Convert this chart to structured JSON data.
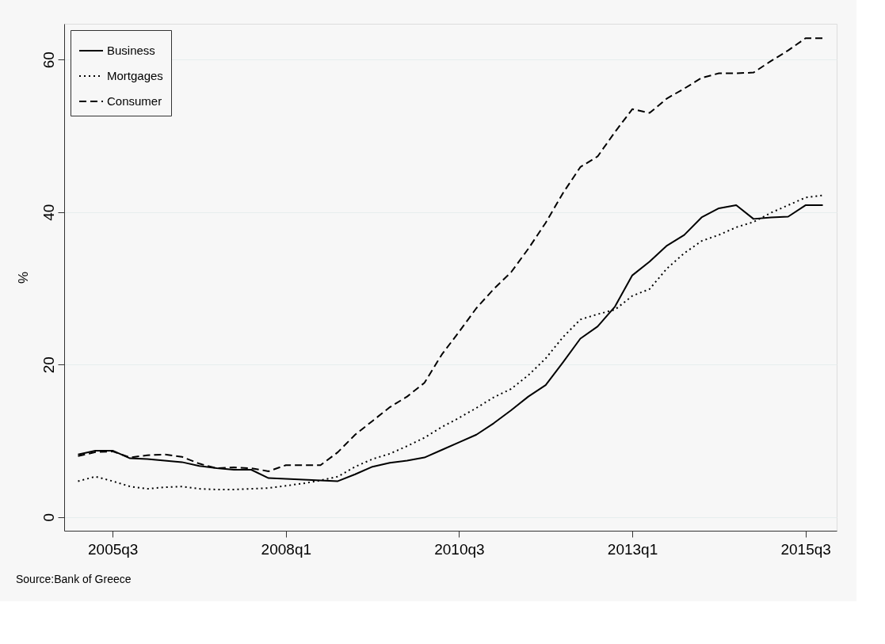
{
  "chart_data": {
    "type": "line",
    "ylabel": "%",
    "categories": [
      null,
      null,
      "2005q3",
      null,
      null,
      null,
      null,
      null,
      null,
      null,
      null,
      null,
      "2008q1",
      null,
      null,
      null,
      null,
      null,
      null,
      null,
      null,
      null,
      "2010q3",
      null,
      null,
      null,
      null,
      null,
      null,
      null,
      null,
      null,
      "2013q1",
      null,
      null,
      null,
      null,
      null,
      null,
      null,
      null,
      null,
      "2015q3",
      null
    ],
    "series": [
      {
        "name": "Business",
        "color": "#000000",
        "line_style": "solid",
        "values": [
          8.2,
          8.7,
          8.7,
          7.7,
          7.6,
          7.4,
          7.2,
          6.7,
          6.4,
          6.2,
          6.2,
          5.1,
          5.0,
          4.9,
          4.8,
          4.7,
          5.6,
          6.6,
          7.1,
          7.4,
          7.8,
          8.8,
          9.8,
          10.8,
          12.3,
          14.0,
          15.8,
          17.3,
          20.3,
          23.4,
          25.0,
          27.6,
          31.7,
          33.5,
          35.6,
          37.0,
          39.3,
          40.5,
          40.9,
          39.1,
          39.3,
          39.4,
          40.9,
          40.9
        ]
      },
      {
        "name": "Mortgages",
        "color": "#000000",
        "line_style": "dotted",
        "values": [
          4.7,
          5.3,
          4.7,
          4.0,
          3.7,
          3.9,
          4.0,
          3.7,
          3.6,
          3.6,
          3.7,
          3.8,
          4.1,
          4.4,
          4.8,
          5.3,
          6.6,
          7.6,
          8.3,
          9.3,
          10.4,
          11.8,
          13.0,
          14.3,
          15.7,
          16.8,
          18.6,
          20.8,
          23.6,
          25.9,
          26.6,
          27.2,
          29.0,
          29.9,
          32.6,
          34.6,
          36.2,
          37.0,
          38.0,
          38.7,
          39.9,
          40.9,
          41.9,
          42.2
        ]
      },
      {
        "name": "Consumer",
        "color": "#000000",
        "line_style": "dashed",
        "values": [
          8.0,
          8.5,
          8.6,
          7.8,
          8.1,
          8.2,
          7.9,
          7.0,
          6.4,
          6.5,
          6.4,
          6.0,
          6.8,
          6.8,
          6.8,
          8.5,
          10.8,
          12.6,
          14.4,
          15.8,
          17.6,
          21.3,
          24.3,
          27.4,
          29.9,
          32.1,
          35.2,
          38.6,
          42.5,
          45.9,
          47.3,
          50.5,
          53.5,
          53.0,
          54.9,
          56.2,
          57.6,
          58.2,
          58.2,
          58.3,
          59.8,
          61.2,
          62.8,
          62.8
        ]
      }
    ],
    "ylim": [
      -1.8,
      64.7
    ],
    "yticks": [
      0,
      20,
      40,
      60
    ],
    "grid": "y",
    "legend": "top left",
    "annotations": [
      "Source:Bank of Greece"
    ]
  }
}
